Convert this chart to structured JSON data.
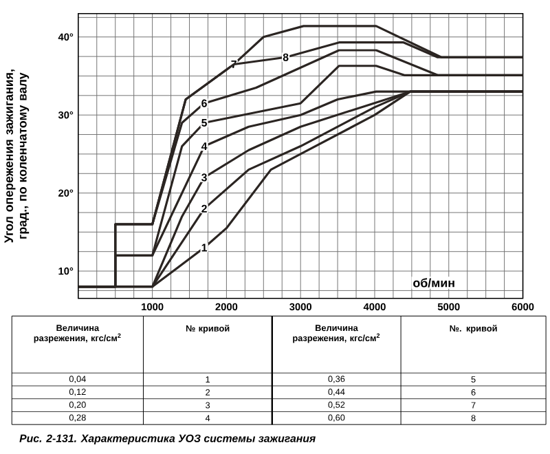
{
  "chart_data": {
    "type": "line",
    "ylabel": "Угол опережения зажигания, град., по коленчатому валу",
    "xlabel": "об/мин",
    "xlim": [
      0,
      6000
    ],
    "ylim": [
      6.5,
      43
    ],
    "xticks": [
      {
        "value": 250,
        "label": null
      },
      {
        "value": 500,
        "label": null
      },
      {
        "value": 750,
        "label": null
      },
      1000,
      {
        "value": 1250,
        "label": null
      },
      {
        "value": 1500,
        "label": null
      },
      {
        "value": 1750,
        "label": null
      },
      2000,
      {
        "value": 2250,
        "label": null
      },
      {
        "value": 2500,
        "label": null
      },
      {
        "value": 2750,
        "label": null
      },
      3000,
      {
        "value": 3250,
        "label": null
      },
      {
        "value": 3500,
        "label": null
      },
      {
        "value": 3750,
        "label": null
      },
      4000,
      {
        "value": 4250,
        "label": null
      },
      {
        "value": 4500,
        "label": null
      },
      {
        "value": 4750,
        "label": null
      },
      5000,
      {
        "value": 5250,
        "label": null
      },
      {
        "value": 5500,
        "label": null
      },
      {
        "value": 5750,
        "label": null
      },
      6000
    ],
    "yticks": [
      {
        "value": 7.5,
        "label": null
      },
      {
        "value": 10,
        "label": "10°"
      },
      {
        "value": 12.5,
        "label": null
      },
      {
        "value": 15,
        "label": null
      },
      {
        "value": 17.5,
        "label": null
      },
      {
        "value": 20,
        "label": "20°"
      },
      {
        "value": 22.5,
        "label": null
      },
      {
        "value": 25,
        "label": null
      },
      {
        "value": 27.5,
        "label": null
      },
      {
        "value": 30,
        "label": "30°"
      },
      {
        "value": 32.5,
        "label": null
      },
      {
        "value": 35,
        "label": null
      },
      {
        "value": 37.5,
        "label": null
      },
      {
        "value": 40,
        "label": "40°"
      },
      {
        "value": 42.5,
        "label": null
      }
    ],
    "grid": true,
    "legend": false,
    "marker": "none",
    "line_style": "solid",
    "series": [
      {
        "name": "1",
        "color": "#2b2522",
        "x": [
          0,
          1000,
          1700,
          2000,
          2600,
          3000,
          4000,
          4480,
          6000
        ],
        "values": [
          8,
          8,
          13,
          15.5,
          23,
          25,
          30,
          33,
          33
        ]
      },
      {
        "name": "2",
        "color": "#2b2522",
        "x": [
          0,
          1000,
          1700,
          2300,
          3000,
          4000,
          4480,
          6000
        ],
        "values": [
          8,
          8,
          18,
          23,
          26,
          31,
          33,
          33
        ]
      },
      {
        "name": "3",
        "color": "#2b2522",
        "x": [
          0,
          1000,
          1400,
          1700,
          2300,
          3000,
          4480,
          6000
        ],
        "values": [
          8,
          8,
          17,
          22,
          25.5,
          28.5,
          33,
          33
        ]
      },
      {
        "name": "4",
        "color": "#2b2522",
        "x": [
          0,
          500,
          500,
          1000,
          1700,
          2300,
          3000,
          3500,
          4020,
          6000
        ],
        "values": [
          8,
          8,
          12,
          12,
          26,
          28.5,
          30,
          32,
          33,
          33
        ]
      },
      {
        "name": "5",
        "color": "#2b2522",
        "x": [
          0,
          500,
          500,
          1000,
          1400,
          1700,
          3000,
          3520,
          4020,
          4400,
          6000
        ],
        "values": [
          8,
          8,
          12,
          12,
          26,
          29,
          31.5,
          36.3,
          36.3,
          35.1,
          35.1
        ]
      },
      {
        "name": "6",
        "color": "#2b2522",
        "x": [
          0,
          500,
          500,
          1000,
          1400,
          1700,
          2400,
          3520,
          4020,
          4850,
          6000
        ],
        "values": [
          8,
          8,
          16,
          16,
          29,
          31.5,
          33.5,
          38.3,
          38.3,
          35.1,
          35.1
        ]
      },
      {
        "name": "7",
        "color": "#2b2522",
        "x": [
          0,
          500,
          500,
          1000,
          1450,
          2100,
          2500,
          3040,
          4020,
          4900,
          6000
        ],
        "values": [
          8,
          8,
          16,
          16,
          32,
          36.5,
          40,
          41.4,
          41.4,
          37.4,
          37.4
        ]
      },
      {
        "name": "8",
        "color": "#2b2522",
        "x": [
          0,
          500,
          500,
          1000,
          1450,
          2100,
          2800,
          3520,
          4390,
          4850,
          6000
        ],
        "values": [
          8,
          8,
          16,
          16,
          32,
          36.5,
          37.4,
          39.3,
          39.3,
          37.4,
          37.4
        ]
      }
    ],
    "annotations": [
      "Величина разрежения, кгс/см$^{2}$",
      "№ кривой",
      "Величина разрежения, кгс/см$^{2}$",
      "№. кривой",
      "0,04",
      "1",
      "0,36",
      "5",
      "0,12",
      "2",
      "0,44",
      "6",
      "0,20",
      "3",
      "0,52",
      "7",
      "0,28",
      "4",
      "0,60",
      "8",
      "Рис. 2-131. Характеристика УОЗ системы зажигания"
    ]
  }
}
